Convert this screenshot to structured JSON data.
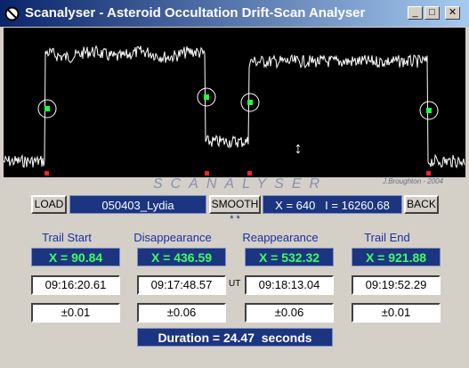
{
  "window": {
    "title": "Scanalyser - Asteroid Occultation Drift-Scan Analyser"
  },
  "plot": {
    "credit": "J.Broughton - 2004"
  },
  "brand": "SCANALYSER",
  "toolbar": {
    "load": "LOAD",
    "file": "050403_Lydia",
    "smooth": "SMOOTH",
    "cursor": "X = 640   I = 16260.68",
    "back": "BACK",
    "marker": "* *"
  },
  "ut_label": "UT",
  "columns": [
    {
      "label": "Trail Start",
      "x": "X = 90.84",
      "time": "09:16:20.61",
      "error": "±0.01"
    },
    {
      "label": "Disappearance",
      "x": "X = 436.59",
      "time": "09:17:48.57",
      "error": "±0.06"
    },
    {
      "label": "Reappearance",
      "x": "X = 532.32",
      "time": "09:18:13.04",
      "error": "±0.06"
    },
    {
      "label": "Trail End",
      "x": "X = 921.88",
      "time": "09:19:52.29",
      "error": "±0.01"
    }
  ],
  "duration": "Duration = 24.47  seconds"
}
